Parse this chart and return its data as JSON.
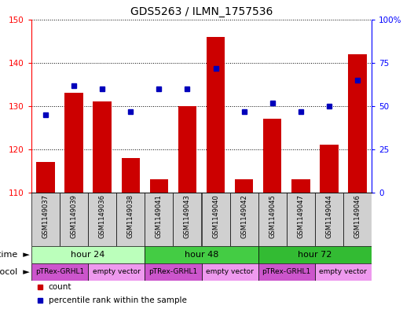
{
  "title": "GDS5263 / ILMN_1757536",
  "samples": [
    "GSM1149037",
    "GSM1149039",
    "GSM1149036",
    "GSM1149038",
    "GSM1149041",
    "GSM1149043",
    "GSM1149040",
    "GSM1149042",
    "GSM1149045",
    "GSM1149047",
    "GSM1149044",
    "GSM1149046"
  ],
  "counts": [
    117,
    133,
    131,
    118,
    113,
    130,
    146,
    113,
    127,
    113,
    121,
    142
  ],
  "percentile_ranks": [
    45,
    62,
    60,
    47,
    60,
    60,
    72,
    47,
    52,
    47,
    50,
    65
  ],
  "ylim_left": [
    110,
    150
  ],
  "ylim_right": [
    0,
    100
  ],
  "yticks_left": [
    110,
    120,
    130,
    140,
    150
  ],
  "yticks_right": [
    0,
    25,
    50,
    75,
    100
  ],
  "bar_color": "#cc0000",
  "dot_color": "#0000bb",
  "time_groups": [
    {
      "label": "hour 24",
      "start": 0,
      "end": 4,
      "color": "#bbffbb"
    },
    {
      "label": "hour 48",
      "start": 4,
      "end": 8,
      "color": "#44cc44"
    },
    {
      "label": "hour 72",
      "start": 8,
      "end": 12,
      "color": "#33bb33"
    }
  ],
  "protocol_groups": [
    {
      "label": "pTRex-GRHL1",
      "start": 0,
      "end": 2,
      "color": "#cc55cc"
    },
    {
      "label": "empty vector",
      "start": 2,
      "end": 4,
      "color": "#ee99ee"
    },
    {
      "label": "pTRex-GRHL1",
      "start": 4,
      "end": 6,
      "color": "#cc55cc"
    },
    {
      "label": "empty vector",
      "start": 6,
      "end": 8,
      "color": "#ee99ee"
    },
    {
      "label": "pTRex-GRHL1",
      "start": 8,
      "end": 10,
      "color": "#cc55cc"
    },
    {
      "label": "empty vector",
      "start": 10,
      "end": 12,
      "color": "#ee99ee"
    }
  ],
  "sample_box_color": "#d0d0d0",
  "legend_items": [
    {
      "label": "count",
      "color": "#cc0000"
    },
    {
      "label": "percentile rank within the sample",
      "color": "#0000bb"
    }
  ],
  "fig_width": 5.13,
  "fig_height": 3.93,
  "dpi": 100
}
